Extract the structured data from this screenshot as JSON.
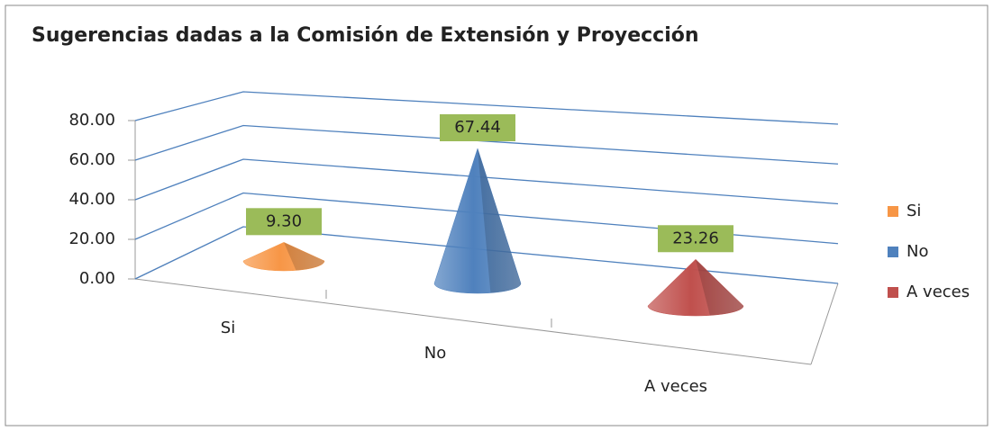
{
  "chart_data": {
    "type": "cone3d",
    "title": "Sugerencias dadas a la Comisión de Extensión y Proyección",
    "categories": [
      "Si",
      "No",
      "A veces"
    ],
    "values": [
      9.3,
      67.44,
      23.26
    ],
    "value_labels": [
      "9.30",
      "67.44",
      "23.26"
    ],
    "colors": [
      "#f79646",
      "#4f81bd",
      "#c0504d"
    ],
    "ylim": [
      0,
      80
    ],
    "yticks": [
      {
        "value": 0,
        "label": "0.00"
      },
      {
        "value": 20,
        "label": "20.00"
      },
      {
        "value": 40,
        "label": "40.00"
      },
      {
        "value": 60,
        "label": "60.00"
      },
      {
        "value": 80,
        "label": "80.00"
      }
    ],
    "grid": true,
    "legend": "right"
  }
}
